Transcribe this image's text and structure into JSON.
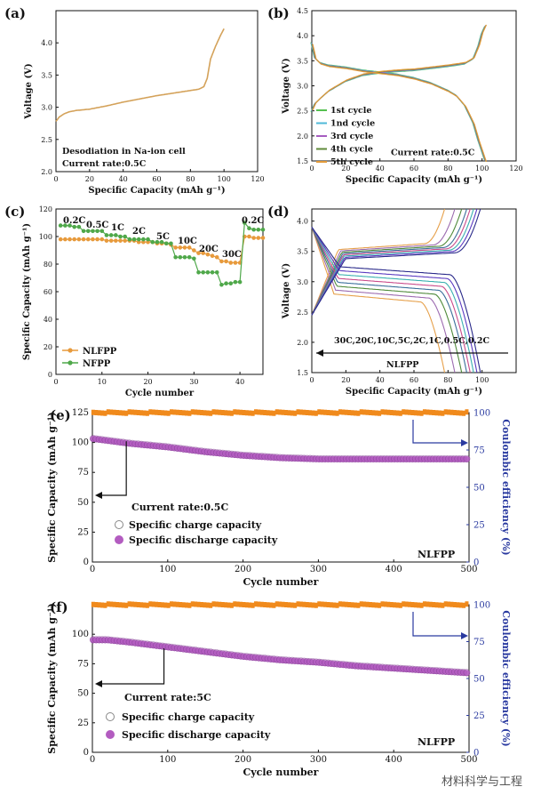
{
  "chart_data": [
    {
      "panel": "(a)",
      "type": "line",
      "xlabel": "Specific Capacity (mAh g⁻¹)",
      "ylabel": "Voltage (V)",
      "xlim": [
        0,
        120
      ],
      "ylim": [
        2.0,
        4.5
      ],
      "xticks": [
        "0",
        "20",
        "40",
        "60",
        "80",
        "100",
        "120"
      ],
      "yticks": [
        "2.0",
        "2.5",
        "3.0",
        "3.5",
        "4.0"
      ],
      "annotation": [
        "Desodiation in Na-ion cell",
        "Current rate:0.5C"
      ],
      "colors": {
        "line": "#d4a25a"
      },
      "series": [
        {
          "x": [
            0,
            2,
            5,
            8,
            12,
            20,
            30,
            40,
            50,
            60,
            70,
            80,
            85,
            88,
            90,
            92,
            95,
            98,
            100
          ],
          "y": [
            2.78,
            2.85,
            2.9,
            2.93,
            2.95,
            2.97,
            3.02,
            3.08,
            3.13,
            3.18,
            3.22,
            3.26,
            3.28,
            3.32,
            3.45,
            3.75,
            3.95,
            4.12,
            4.22
          ]
        }
      ]
    },
    {
      "panel": "(b)",
      "type": "line",
      "xlabel": "Specific Capacity (mAh g⁻¹)",
      "ylabel": "Voltage (V)",
      "xlim": [
        0,
        120
      ],
      "ylim": [
        1.5,
        4.5
      ],
      "xticks": [
        "0",
        "20",
        "40",
        "60",
        "80",
        "100",
        "120"
      ],
      "yticks": [
        "1.5",
        "2.0",
        "2.5",
        "3.0",
        "3.5",
        "4.0",
        "4.5"
      ],
      "annotation": "Current rate:0.5C",
      "series": [
        {
          "name": "1st cycle",
          "color": "#55c050"
        },
        {
          "name": "1nd cycle",
          "color": "#4fb9d8"
        },
        {
          "name": "3rd  cycle",
          "color": "#a65cc0"
        },
        {
          "name": "4th  cycle",
          "color": "#5f8a3a"
        },
        {
          "name": "5th  cycle",
          "color": "#e29a3a"
        }
      ],
      "charge_curve": {
        "x": [
          0,
          2,
          5,
          10,
          20,
          30,
          40,
          50,
          60,
          70,
          80,
          90,
          95,
          98,
          100,
          102
        ],
        "y": [
          2.5,
          2.65,
          2.75,
          2.9,
          3.1,
          3.22,
          3.27,
          3.3,
          3.32,
          3.36,
          3.4,
          3.45,
          3.55,
          3.8,
          4.05,
          4.2
        ]
      },
      "discharge_curve": {
        "x": [
          0,
          2,
          5,
          10,
          20,
          30,
          40,
          50,
          60,
          70,
          80,
          85,
          90,
          95,
          98,
          100,
          102
        ],
        "y": [
          3.85,
          3.55,
          3.45,
          3.4,
          3.36,
          3.3,
          3.26,
          3.22,
          3.15,
          3.05,
          2.9,
          2.8,
          2.6,
          2.25,
          1.9,
          1.7,
          1.5
        ]
      }
    },
    {
      "panel": "(c)",
      "type": "scatter",
      "xlabel": "Cycle number",
      "ylabel": "Specific Capacity (mAh g⁻¹)",
      "xlim": [
        0,
        45
      ],
      "ylim": [
        0,
        120
      ],
      "xticks": [
        "0",
        "10",
        "20",
        "30",
        "40"
      ],
      "yticks": [
        "0",
        "20",
        "40",
        "60",
        "80",
        "100",
        "120"
      ],
      "rate_labels": [
        "0.2C",
        "0.5C",
        "1C",
        "2C",
        "5C",
        "10C",
        "20C",
        "30C",
        "0.2C"
      ],
      "legend_placement": "bottom-left",
      "series": [
        {
          "name": "NLFPP",
          "color": "#e79a3c",
          "values": [
            98,
            98,
            98,
            98,
            98,
            98,
            98,
            98,
            98,
            98,
            97,
            97,
            97,
            97,
            97,
            97,
            97,
            96,
            96,
            96,
            96,
            95,
            95,
            95,
            94,
            92,
            92,
            92,
            92,
            90,
            88,
            88,
            87,
            86,
            85,
            82,
            82,
            81,
            81,
            81,
            100,
            100,
            99,
            99,
            99
          ]
        },
        {
          "name": "NFPP",
          "color": "#4fa84a",
          "values": [
            108,
            108,
            108,
            107,
            107,
            104,
            104,
            104,
            104,
            104,
            101,
            101,
            101,
            100,
            100,
            98,
            98,
            98,
            98,
            98,
            96,
            96,
            96,
            95,
            95,
            85,
            85,
            85,
            85,
            84,
            74,
            74,
            74,
            74,
            74,
            65,
            66,
            66,
            67,
            67,
            110,
            106,
            105,
            105,
            105
          ]
        }
      ]
    },
    {
      "panel": "(d)",
      "type": "line",
      "xlabel": "Specific Capacity (mAh g⁻¹)",
      "ylabel": "Voltage (V)",
      "xlim": [
        0,
        120
      ],
      "ylim": [
        1.5,
        4.2
      ],
      "xticks": [
        "0",
        "20",
        "40",
        "60",
        "80",
        "100"
      ],
      "yticks": [
        "1.5",
        "2.0",
        "2.5",
        "3.0",
        "3.5",
        "4.0"
      ],
      "annotation": [
        "30C,20C,10C,5C,2C,1C,0.5C,0.2C",
        "NLFPP"
      ],
      "curves": [
        {
          "rate": "30C",
          "color": "#e6a04a",
          "cap": 78
        },
        {
          "rate": "20C",
          "color": "#9c6bb0",
          "cap": 84
        },
        {
          "rate": "10C",
          "color": "#4f8a3a",
          "cap": 88
        },
        {
          "rate": "5C",
          "color": "#3a6e9a",
          "cap": 91
        },
        {
          "rate": "2C",
          "color": "#c94a8a",
          "cap": 93
        },
        {
          "rate": "1C",
          "color": "#3ab0b0",
          "cap": 95
        },
        {
          "rate": "0.5C",
          "color": "#5a3ac0",
          "cap": 97
        },
        {
          "rate": "0.2C",
          "color": "#2a2a8a",
          "cap": 99
        }
      ]
    },
    {
      "panel": "(e)",
      "type": "scatter",
      "xlabel": "Cycle number",
      "ylabel": "Specific Capacity (mAh g⁻¹)",
      "y2label": "Coulombic efficiency (%)",
      "xlim": [
        0,
        500
      ],
      "ylim": [
        0,
        125
      ],
      "y2lim": [
        0,
        100
      ],
      "xticks": [
        "0",
        "100",
        "200",
        "300",
        "400",
        "500"
      ],
      "yticks": [
        "0",
        "25",
        "50",
        "75",
        "100",
        "125"
      ],
      "y2ticks": [
        "0",
        "25",
        "50",
        "75",
        "100"
      ],
      "annotation": "Current rate:0.5C",
      "tag": "NLFPP",
      "legend": [
        "Specific charge capacity",
        "Specific discharge capacity"
      ],
      "colors": {
        "charge": "#7a3a8a",
        "discharge": "#b35cc0",
        "ce": "#f08a1c",
        "y2axis": "#2a3aa0"
      },
      "capacity_x": [
        1,
        50,
        100,
        150,
        200,
        250,
        300,
        350,
        400,
        450,
        500
      ],
      "capacity_y": [
        103,
        99,
        96,
        92,
        89,
        87,
        86,
        86,
        86,
        86,
        86
      ],
      "ce_value": 100
    },
    {
      "panel": "(f)",
      "type": "scatter",
      "xlabel": "Cycle number",
      "ylabel": "Specific Capacity (mAh g⁻¹)",
      "y2label": "Coulombic efficiency (%)",
      "xlim": [
        0,
        500
      ],
      "ylim": [
        0,
        125
      ],
      "y2lim": [
        0,
        100
      ],
      "xticks": [
        "0",
        "100",
        "200",
        "300",
        "400",
        "500"
      ],
      "yticks": [
        "0",
        "25",
        "50",
        "75",
        "100"
      ],
      "y2ticks": [
        "0",
        "25",
        "50",
        "75",
        "100"
      ],
      "annotation": "Current rate:5C",
      "tag": "NLFPP",
      "legend": [
        "Specific charge capacity",
        "Specific discharge capacity"
      ],
      "colors": {
        "charge": "#7a3a8a",
        "discharge": "#b35cc0",
        "ce": "#f08a1c",
        "y2axis": "#2a3aa0"
      },
      "capacity_x": [
        1,
        20,
        50,
        100,
        150,
        200,
        250,
        300,
        350,
        400,
        450,
        500
      ],
      "capacity_y": [
        95,
        95,
        93,
        89,
        85,
        81,
        78,
        76,
        73,
        71,
        69,
        67
      ],
      "ce_value": 100
    }
  ],
  "watermark": "材料科学与工程"
}
